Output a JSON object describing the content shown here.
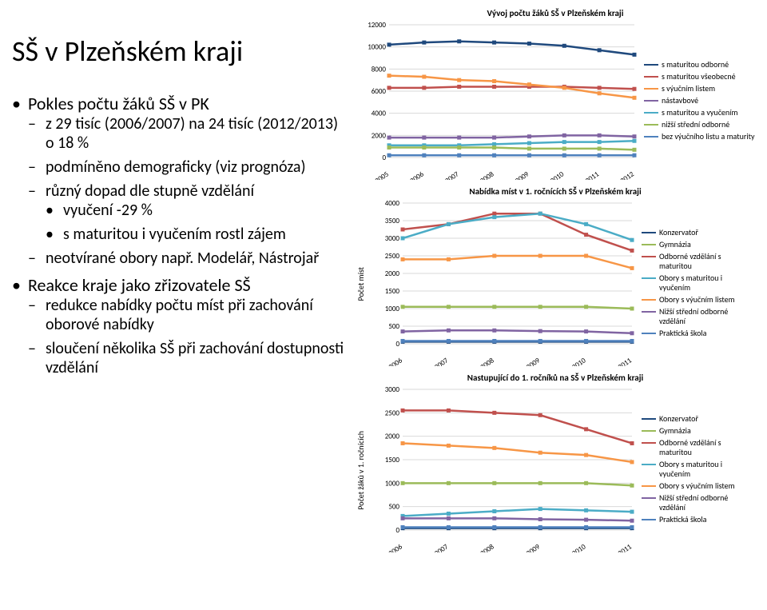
{
  "title": "SŠ v Plzeňském kraji",
  "bullets": [
    {
      "text": "Pokles počtu žáků SŠ v PK",
      "sub": [
        {
          "text": "z 29 tisíc (2006/2007) na 24 tisíc (2012/2013) o 18 %"
        },
        {
          "text": "podmíněno demograficky (viz prognóza)"
        },
        {
          "text": "různý dopad dle stupně vzdělání",
          "sub": [
            {
              "text": "vyučení -29 %"
            },
            {
              "text": "s maturitou i vyučením rostl zájem"
            }
          ]
        },
        {
          "text": "neotvírané obory např. Modelář, Nástrojař"
        }
      ]
    },
    {
      "text": "Reakce kraje jako zřizovatele SŠ",
      "sub": [
        {
          "text": "redukce nabídky počtu míst při zachování oborové nabídky"
        },
        {
          "text": "sloučení několika SŠ při zachování dostupnosti vzdělání"
        }
      ]
    }
  ],
  "chart1": {
    "type": "line",
    "title": "Vývoj počtu žáků SŠ v Plzeňském kraji",
    "years": [
      "2005",
      "2006",
      "2007",
      "2008",
      "2009",
      "2010",
      "2011",
      "2012"
    ],
    "ylim": [
      0,
      12000
    ],
    "ytick_step": 2000,
    "grid_color": "#d9d9d9",
    "background_color": "#ffffff",
    "series": [
      {
        "name": "s maturitou odborné",
        "color": "#1f497d",
        "values": [
          10200,
          10400,
          10500,
          10400,
          10300,
          10100,
          9700,
          9300
        ]
      },
      {
        "name": "s maturitou všeobecné",
        "color": "#c0504d",
        "values": [
          6300,
          6300,
          6400,
          6400,
          6400,
          6400,
          6300,
          6200
        ]
      },
      {
        "name": "s výučním listem",
        "color": "#f79646",
        "values": [
          7400,
          7300,
          7000,
          6900,
          6600,
          6300,
          5800,
          5400
        ]
      },
      {
        "name": "nástavbové",
        "color": "#8064a2",
        "values": [
          1800,
          1800,
          1800,
          1800,
          1900,
          2000,
          2000,
          1900
        ]
      },
      {
        "name": "s maturitou a vyučením",
        "color": "#4bacc6",
        "values": [
          1100,
          1100,
          1100,
          1200,
          1300,
          1400,
          1400,
          1500
        ]
      },
      {
        "name": "nižší střední odborné",
        "color": "#9bbb59",
        "values": [
          900,
          900,
          900,
          900,
          800,
          800,
          800,
          700
        ]
      },
      {
        "name": "bez výučního listu a maturity",
        "color": "#4f81bd",
        "values": [
          200,
          200,
          200,
          200,
          200,
          200,
          200,
          200
        ]
      }
    ]
  },
  "chart2": {
    "type": "line",
    "title": "Nabídka míst v 1. ročnících SŠ v Plzeňském kraji",
    "ylabel": "Počet míst",
    "years": [
      "2006",
      "2007",
      "2008",
      "2009",
      "2010",
      "2011"
    ],
    "ylim": [
      0,
      4000
    ],
    "ytick_step": 500,
    "grid_color": "#d9d9d9",
    "series_legend": [
      {
        "name": "Konzervatoř",
        "color": "#1f497d"
      },
      {
        "name": "Gymnázia",
        "color": "#9bbb59"
      },
      {
        "name": "Odborné vzdělání s maturitou",
        "color": "#c0504d"
      },
      {
        "name": "Obory s maturitou i vyučením",
        "color": "#4bacc6"
      },
      {
        "name": "Obory s výučním listem",
        "color": "#f79646"
      },
      {
        "name": "Nižší střední odborné vzdělání",
        "color": "#8064a2"
      },
      {
        "name": "Praktická škola",
        "color": "#4f81bd"
      }
    ],
    "series": [
      {
        "name": "Konzervatoř",
        "color": "#1f497d",
        "values": [
          60,
          60,
          60,
          60,
          60,
          60
        ]
      },
      {
        "name": "Gymnázia",
        "color": "#9bbb59",
        "values": [
          1050,
          1050,
          1050,
          1050,
          1050,
          1000
        ]
      },
      {
        "name": "Odborné vzdělání s maturitou",
        "color": "#c0504d",
        "values": [
          3250,
          3400,
          3700,
          3700,
          3100,
          2650
        ]
      },
      {
        "name": "Obory s maturitou i vyučením",
        "color": "#4bacc6",
        "values": [
          3000,
          3400,
          3600,
          3700,
          3400,
          2950
        ]
      },
      {
        "name": "Obory s výučním listem",
        "color": "#f79646",
        "values": [
          2400,
          2400,
          2500,
          2500,
          2500,
          2150
        ]
      },
      {
        "name": "Nižší střední odborné vzdělání",
        "color": "#8064a2",
        "values": [
          350,
          380,
          380,
          360,
          350,
          300
        ]
      },
      {
        "name": "Praktická škola",
        "color": "#4f81bd",
        "values": [
          80,
          80,
          80,
          80,
          80,
          80
        ]
      }
    ]
  },
  "chart3": {
    "type": "line",
    "title": "Nastupující do 1. ročníků na SŠ v Plzeňském kraji",
    "ylabel": "Počet žáků v 1. ročnících",
    "years": [
      "2006",
      "2007",
      "2008",
      "2009",
      "2010",
      "2011"
    ],
    "ylim": [
      0,
      3000
    ],
    "ytick_step": 500,
    "grid_color": "#d9d9d9",
    "series_legend": [
      {
        "name": "Konzervatoř",
        "color": "#1f497d"
      },
      {
        "name": "Gymnázia",
        "color": "#9bbb59"
      },
      {
        "name": "Odborné vzdělání s maturitou",
        "color": "#c0504d"
      },
      {
        "name": "Obory s maturitou i vyučením",
        "color": "#4bacc6"
      },
      {
        "name": "Obory s výučním listem",
        "color": "#f79646"
      },
      {
        "name": "Nižší střední odborné vzdělání",
        "color": "#8064a2"
      },
      {
        "name": "Praktická škola",
        "color": "#4f81bd"
      }
    ],
    "series": [
      {
        "name": "Konzervatoř",
        "color": "#1f497d",
        "values": [
          40,
          40,
          40,
          40,
          40,
          40
        ]
      },
      {
        "name": "Gymnázia",
        "color": "#9bbb59",
        "values": [
          1000,
          1000,
          1000,
          1000,
          1000,
          950
        ]
      },
      {
        "name": "Odborné vzdělání s maturitou",
        "color": "#c0504d",
        "values": [
          2550,
          2550,
          2500,
          2450,
          2150,
          1850
        ]
      },
      {
        "name": "Obory s maturitou i vyučením",
        "color": "#4bacc6",
        "values": [
          300,
          350,
          400,
          450,
          420,
          390
        ]
      },
      {
        "name": "Obory s výučním listem",
        "color": "#f79646",
        "values": [
          1850,
          1800,
          1750,
          1650,
          1600,
          1450
        ]
      },
      {
        "name": "Nižší střední odborné vzdělání",
        "color": "#8064a2",
        "values": [
          250,
          250,
          250,
          230,
          220,
          200
        ]
      },
      {
        "name": "Praktická škola",
        "color": "#4f81bd",
        "values": [
          60,
          60,
          60,
          60,
          60,
          60
        ]
      }
    ]
  }
}
